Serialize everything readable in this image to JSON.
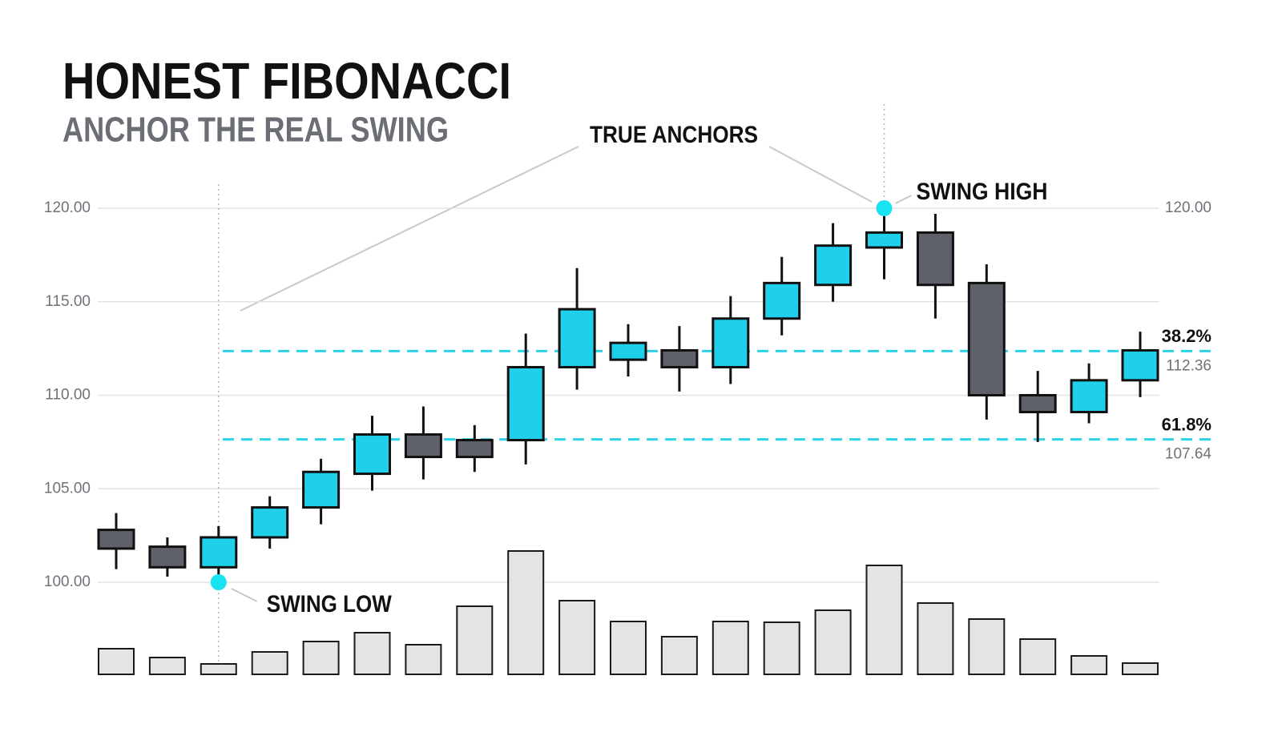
{
  "chart_data": {
    "type": "candlestick",
    "title": "HONEST FIBONACCI",
    "subtitle": "ANCHOR THE REAL SWING",
    "open": [
      102.8,
      101.9,
      100.8,
      102.4,
      104.0,
      105.8,
      107.9,
      107.6,
      107.6,
      111.5,
      111.9,
      112.4,
      111.5,
      114.1,
      115.9,
      117.9,
      118.7,
      116.0,
      110.0,
      109.1,
      110.8
    ],
    "high": [
      103.7,
      102.4,
      103.0,
      104.6,
      106.6,
      108.9,
      109.4,
      108.4,
      113.3,
      116.8,
      113.8,
      113.7,
      115.3,
      117.4,
      119.2,
      120.0,
      119.7,
      117.0,
      111.3,
      111.7,
      113.4
    ],
    "low": [
      100.7,
      100.3,
      100.0,
      101.8,
      103.1,
      104.9,
      105.5,
      105.9,
      106.3,
      110.3,
      111.0,
      110.2,
      110.6,
      113.2,
      115.0,
      116.2,
      114.1,
      108.7,
      107.5,
      108.5,
      109.9
    ],
    "close": [
      101.8,
      100.8,
      102.4,
      104.0,
      105.9,
      107.9,
      106.7,
      106.7,
      111.5,
      114.6,
      112.8,
      111.5,
      114.1,
      116.0,
      118.0,
      118.7,
      115.9,
      110.0,
      109.1,
      110.8,
      112.4
    ],
    "up_color": "#1fd0ea",
    "down_color": "#5e6169",
    "volume": {
      "values": [
        32,
        21,
        13,
        28,
        41,
        52,
        37,
        85,
        154,
        92,
        66,
        47,
        66,
        65,
        80,
        136,
        89,
        69,
        44,
        23,
        14
      ],
      "color": "#e3e4e6",
      "lim": [
        0,
        200
      ]
    },
    "ylim": [
      98,
      121
    ],
    "yticks": [
      {
        "value": 100,
        "label": "100.00"
      },
      {
        "value": 105,
        "label": "105.00"
      },
      {
        "value": 110,
        "label": "110.00"
      },
      {
        "value": 115,
        "label": "115.00"
      },
      {
        "value": 120,
        "label": "120.00"
      }
    ],
    "grid": true,
    "fib_levels": [
      {
        "label": "38.2%",
        "value": 112.36
      },
      {
        "label": "61.8%",
        "value": 107.64
      }
    ],
    "fib_color": "#2fd3e6",
    "annotations": {
      "anchors": "TRUE ANCHORS",
      "swing_high": "SWING HIGH",
      "swing_low": "SWING LOW"
    }
  }
}
